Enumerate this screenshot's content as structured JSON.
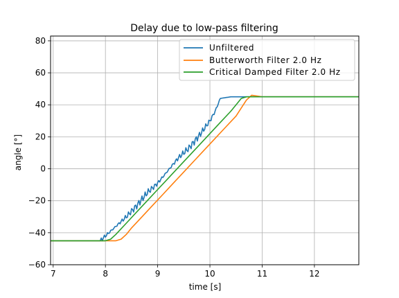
{
  "chart_data": {
    "type": "line",
    "title": "Delay due to low-pass filtering",
    "xlabel": "time [s]",
    "ylabel": "angle [°]",
    "xlim": [
      6.95,
      12.85
    ],
    "ylim": [
      -60,
      83
    ],
    "xticks": [
      7,
      8,
      9,
      10,
      11,
      12
    ],
    "yticks": [
      -60,
      -40,
      -20,
      0,
      20,
      40,
      60,
      80
    ],
    "xtick_labels": [
      "7",
      "8",
      "9",
      "10",
      "11",
      "12"
    ],
    "ytick_labels": [
      "−60",
      "−40",
      "−20",
      "0",
      "20",
      "40",
      "60",
      "80"
    ],
    "grid": true,
    "legend_position": "upper-right",
    "series": [
      {
        "name": "Unfiltered",
        "color": "#1f77b4",
        "x": [
          6.95,
          7.9,
          8.0,
          8.2,
          8.4,
          8.6,
          8.8,
          9.0,
          9.2,
          9.4,
          9.6,
          9.8,
          10.0,
          10.1,
          10.2,
          10.4,
          10.6,
          10.8,
          11.0,
          12.85
        ],
        "y": [
          -45,
          -45,
          -42,
          -36,
          -30,
          -23,
          -15,
          -9,
          -1,
          7,
          13,
          21,
          30,
          36,
          44,
          45,
          45,
          45,
          45,
          45
        ]
      },
      {
        "name": "Butterworth Filter 2.0 Hz",
        "color": "#ff7f0e",
        "x": [
          6.95,
          8.2,
          8.3,
          8.4,
          8.5,
          8.7,
          8.9,
          9.1,
          9.3,
          9.5,
          9.7,
          9.9,
          10.1,
          10.3,
          10.5,
          10.6,
          10.7,
          10.8,
          10.9,
          11.0,
          12.85
        ],
        "y": [
          -45,
          -45,
          -44,
          -41,
          -37,
          -30,
          -23,
          -16,
          -9,
          -2,
          5,
          12,
          19,
          26,
          33,
          38,
          43,
          46,
          45.5,
          45,
          45
        ]
      },
      {
        "name": "Critical Damped Filter 2.0 Hz",
        "color": "#2ca02c",
        "x": [
          6.95,
          8.0,
          8.1,
          8.2,
          8.4,
          8.6,
          8.8,
          9.0,
          9.2,
          9.4,
          9.6,
          9.8,
          10.0,
          10.2,
          10.4,
          10.5,
          10.6,
          10.7,
          12.85
        ],
        "y": [
          -45,
          -45,
          -44,
          -41,
          -34,
          -27,
          -20,
          -13,
          -6,
          1,
          8,
          15,
          22,
          29,
          36,
          40,
          44,
          45,
          45
        ]
      }
    ]
  }
}
